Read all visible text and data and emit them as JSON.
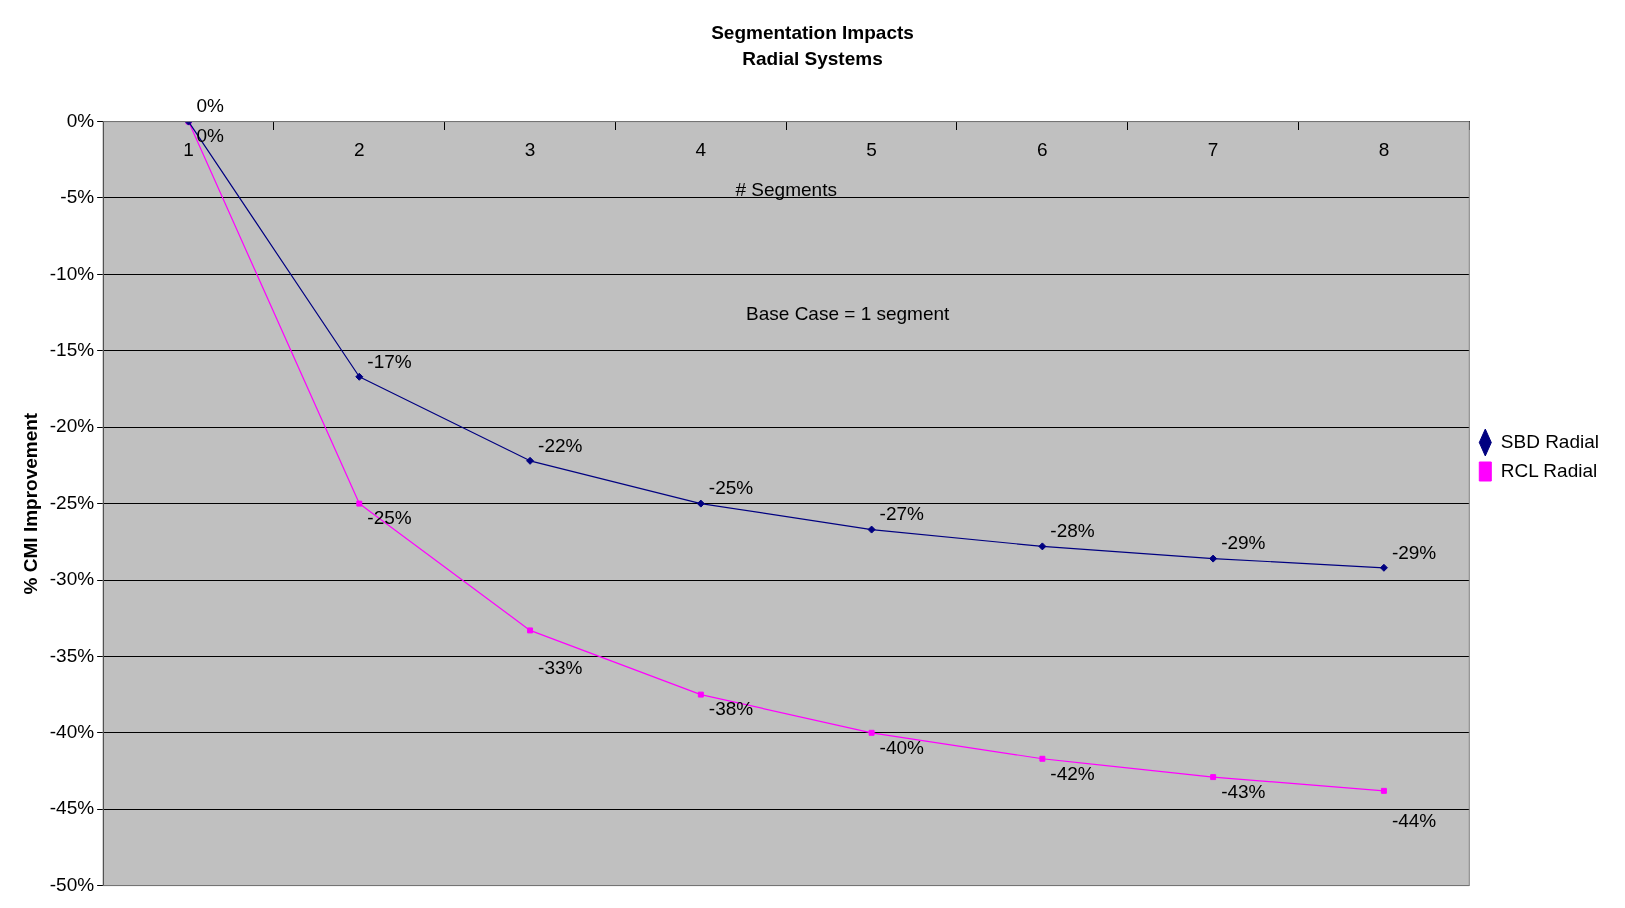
{
  "chart_data": {
    "type": "line",
    "title": "Segmentation Impacts",
    "subtitle": "Radial Systems",
    "xlabel": "# Segments",
    "ylabel": "% CMI Improvement",
    "categories": [
      "1",
      "2",
      "3",
      "4",
      "5",
      "6",
      "7",
      "8"
    ],
    "series": [
      {
        "name": "SBD Radial",
        "color": "#000080",
        "marker": "diamond",
        "values": [
          0,
          -16.7,
          -22.2,
          -25.0,
          -26.7,
          -27.8,
          -28.6,
          -29.2
        ],
        "value_labels": [
          "0%",
          "-17%",
          "-22%",
          "-25%",
          "-27%",
          "-28%",
          "-29%",
          "-29%"
        ]
      },
      {
        "name": "RCL Radial",
        "color": "#ff00ff",
        "marker": "square",
        "values": [
          0,
          -25.0,
          -33.3,
          -37.5,
          -40.0,
          -41.7,
          -42.9,
          -43.8
        ],
        "value_labels": [
          "0%",
          "-25%",
          "-33%",
          "-38%",
          "-40%",
          "-42%",
          "-43%",
          "-44%"
        ]
      }
    ],
    "ylim": [
      -50,
      0
    ],
    "yticks": [
      {
        "value": 0,
        "label": "0%"
      },
      {
        "value": -5,
        "label": "-5%"
      },
      {
        "value": -10,
        "label": "-10%"
      },
      {
        "value": -15,
        "label": "-15%"
      },
      {
        "value": -20,
        "label": "-20%"
      },
      {
        "value": -25,
        "label": "-25%"
      },
      {
        "value": -30,
        "label": "-30%"
      },
      {
        "value": -35,
        "label": "-35%"
      },
      {
        "value": -40,
        "label": "-40%"
      },
      {
        "value": -45,
        "label": "-45%"
      },
      {
        "value": -50,
        "label": "-50%"
      }
    ],
    "grid": "y",
    "legend": "right",
    "line_style": "solid",
    "annotations": [
      "Base Case = 1 segment"
    ]
  }
}
